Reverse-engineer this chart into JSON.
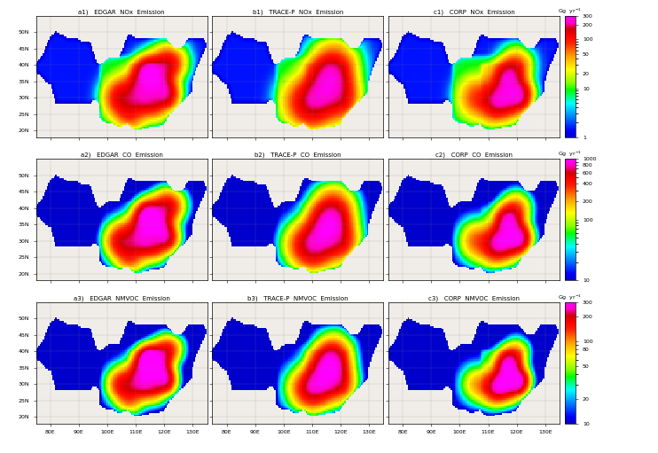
{
  "titles": [
    [
      "a1)   EDGAR  NOx  Emission",
      "b1)   TRACE-P  NOx  Emission",
      "c1)   CORP  NOx  Emission"
    ],
    [
      "a2)   EDGAR  CO  Emission",
      "b2)   TRACE-P  CO  Emission",
      "c2)   CORP  CO  Emission"
    ],
    [
      "a3)   EDGAR  NMVOC  Emission",
      "b3)   TRACE-P  NMVOC  Emission",
      "c3)   CORP  NMVOC  Emission"
    ]
  ],
  "row_configs": [
    {
      "vmin": 1,
      "vmax": 300,
      "ticks": [
        1,
        10,
        20,
        50,
        100,
        200,
        300
      ],
      "ticklabels": [
        "1",
        "10",
        "20",
        "50",
        "100",
        "200",
        "300"
      ],
      "label": "Gg  yr$^{-1}$"
    },
    {
      "vmin": 10,
      "vmax": 1000,
      "ticks": [
        10,
        100,
        200,
        400,
        600,
        800,
        1000
      ],
      "ticklabels": [
        "10",
        "100",
        "200",
        "400",
        "600",
        "800",
        "1000"
      ],
      "label": "Gg  yr$^{-1}$"
    },
    {
      "vmin": 10,
      "vmax": 300,
      "ticks": [
        10,
        20,
        50,
        80,
        100,
        200,
        300
      ],
      "ticklabels": [
        "10",
        "20",
        "50",
        "80",
        "100",
        "200",
        "300"
      ],
      "label": "Gg  yr$^{-1}$"
    }
  ],
  "lon_range": [
    75,
    135
  ],
  "lat_range": [
    18,
    55
  ],
  "lon_ticks": [
    80,
    90,
    100,
    110,
    120,
    130
  ],
  "lat_ticks": [
    20,
    25,
    30,
    35,
    40,
    45,
    50
  ],
  "bg_color": "#f0ede8",
  "ocean_color": "#c8dff0",
  "cmap_colors": [
    "#0000cd",
    "#0000ff",
    "#0040ff",
    "#0080ff",
    "#00c0ff",
    "#00ffff",
    "#00ff80",
    "#00ff00",
    "#80ff00",
    "#c0ff00",
    "#ffff00",
    "#ffd000",
    "#ffa000",
    "#ff6000",
    "#ff2000",
    "#ff0000",
    "#d00000",
    "#ff00c0",
    "#ff00ff"
  ]
}
